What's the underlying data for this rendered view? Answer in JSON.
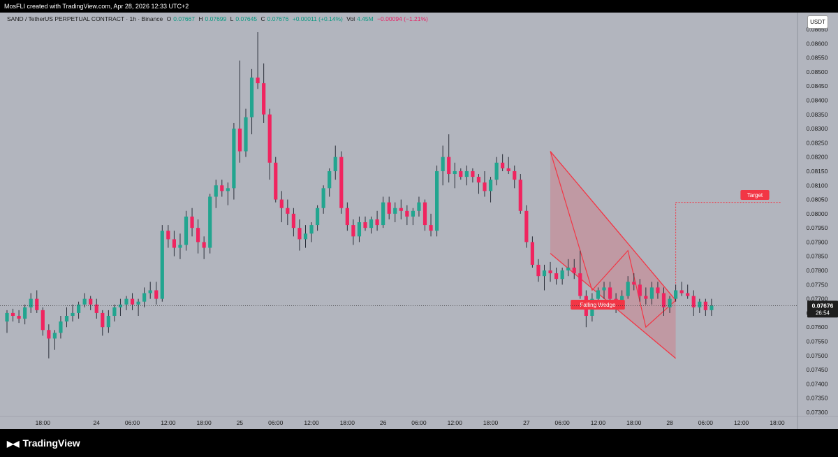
{
  "header": {
    "caption": "MosFLI created with TradingView.com, Apr 28, 2026 12:33 UTC+2"
  },
  "legend": {
    "symbol": "SAND / TetherUS PERPETUAL CONTRACT · 1h · Binance",
    "o_label": "O",
    "o_value": "0.07667",
    "h_label": "H",
    "h_value": "0.07699",
    "l_label": "L",
    "l_value": "0.07645",
    "c_label": "C",
    "c_value": "0.07676",
    "change": "+0.00011 (+0.14%)",
    "vol_label": "Vol",
    "vol_value": "4.45M",
    "vol_change": "−0.00094 (−1.21%)"
  },
  "currency_button": "USDT",
  "colors": {
    "up": "#22a58f",
    "down": "#f0245f",
    "pattern": "#f23645",
    "background": "#b2b5be"
  },
  "footer": {
    "brand": "TradingView",
    "logo_icon": "tradingview-logo-icon"
  },
  "chart_data": {
    "type": "candlestick",
    "interval": "1h",
    "y_axis": {
      "min": 0.073,
      "max": 0.0865,
      "ticks": [
        "0.08650",
        "0.08600",
        "0.08550",
        "0.08500",
        "0.08450",
        "0.08400",
        "0.08350",
        "0.08300",
        "0.08250",
        "0.08200",
        "0.08150",
        "0.08100",
        "0.08050",
        "0.08000",
        "0.07950",
        "0.07900",
        "0.07850",
        "0.07800",
        "0.07750",
        "0.07700",
        "0.07650",
        "0.07600",
        "0.07550",
        "0.07500",
        "0.07450",
        "0.07400",
        "0.07350",
        "0.07300"
      ]
    },
    "x_axis": {
      "ticks": [
        {
          "label": "18:00",
          "index": 6
        },
        {
          "label": "24",
          "index": 15
        },
        {
          "label": "06:00",
          "index": 21
        },
        {
          "label": "12:00",
          "index": 27
        },
        {
          "label": "18:00",
          "index": 33
        },
        {
          "label": "25",
          "index": 39
        },
        {
          "label": "06:00",
          "index": 45
        },
        {
          "label": "12:00",
          "index": 51
        },
        {
          "label": "18:00",
          "index": 57
        },
        {
          "label": "26",
          "index": 63
        },
        {
          "label": "06:00",
          "index": 69
        },
        {
          "label": "12:00",
          "index": 75
        },
        {
          "label": "18:00",
          "index": 81
        },
        {
          "label": "27",
          "index": 87
        },
        {
          "label": "06:00",
          "index": 93
        },
        {
          "label": "12:00",
          "index": 99
        },
        {
          "label": "18:00",
          "index": 105
        },
        {
          "label": "28",
          "index": 111
        },
        {
          "label": "06:00",
          "index": 117
        },
        {
          "label": "12:00",
          "index": 123
        },
        {
          "label": "18:00",
          "index": 129
        }
      ]
    },
    "last_price": {
      "value": "0.07676",
      "countdown": "26:54"
    },
    "ohlc": [
      [
        0.0762,
        0.0766,
        0.0758,
        0.0765
      ],
      [
        0.0765,
        0.07665,
        0.0762,
        0.0764
      ],
      [
        0.0764,
        0.0766,
        0.07615,
        0.0763
      ],
      [
        0.0763,
        0.0768,
        0.0761,
        0.0767
      ],
      [
        0.0767,
        0.0772,
        0.0765,
        0.077
      ],
      [
        0.077,
        0.0773,
        0.0765,
        0.0766
      ],
      [
        0.0766,
        0.0767,
        0.0757,
        0.0759
      ],
      [
        0.0759,
        0.0761,
        0.0749,
        0.0756
      ],
      [
        0.0756,
        0.0759,
        0.0752,
        0.0758
      ],
      [
        0.0758,
        0.0764,
        0.0756,
        0.0762
      ],
      [
        0.0762,
        0.0767,
        0.076,
        0.0764
      ],
      [
        0.0764,
        0.0768,
        0.0762,
        0.0765
      ],
      [
        0.0765,
        0.0769,
        0.0763,
        0.0768
      ],
      [
        0.0768,
        0.0772,
        0.0767,
        0.077
      ],
      [
        0.077,
        0.0771,
        0.0766,
        0.0768
      ],
      [
        0.0768,
        0.077,
        0.0763,
        0.0765
      ],
      [
        0.0765,
        0.0766,
        0.0757,
        0.076
      ],
      [
        0.076,
        0.0766,
        0.0758,
        0.0764
      ],
      [
        0.0764,
        0.0768,
        0.0762,
        0.0767
      ],
      [
        0.0767,
        0.077,
        0.0764,
        0.0768
      ],
      [
        0.0768,
        0.0771,
        0.0766,
        0.077
      ],
      [
        0.077,
        0.0772,
        0.0766,
        0.0768
      ],
      [
        0.0768,
        0.077,
        0.0764,
        0.0769
      ],
      [
        0.0769,
        0.0774,
        0.0767,
        0.0772
      ],
      [
        0.0772,
        0.0776,
        0.077,
        0.0773
      ],
      [
        0.0773,
        0.0776,
        0.0768,
        0.077
      ],
      [
        0.077,
        0.0796,
        0.0769,
        0.0794
      ],
      [
        0.0794,
        0.0796,
        0.0788,
        0.0791
      ],
      [
        0.0791,
        0.0794,
        0.0785,
        0.0788
      ],
      [
        0.0788,
        0.0793,
        0.0784,
        0.0789
      ],
      [
        0.0789,
        0.0801,
        0.0787,
        0.0799
      ],
      [
        0.0799,
        0.0802,
        0.0792,
        0.0795
      ],
      [
        0.0795,
        0.0798,
        0.0786,
        0.079
      ],
      [
        0.079,
        0.0792,
        0.0784,
        0.0788
      ],
      [
        0.0788,
        0.0807,
        0.0786,
        0.0806
      ],
      [
        0.0806,
        0.0812,
        0.0802,
        0.081
      ],
      [
        0.081,
        0.0812,
        0.0806,
        0.0808
      ],
      [
        0.0808,
        0.0811,
        0.0803,
        0.0809
      ],
      [
        0.0809,
        0.0832,
        0.0805,
        0.083
      ],
      [
        0.083,
        0.0854,
        0.0818,
        0.0822
      ],
      [
        0.0822,
        0.0837,
        0.082,
        0.0834
      ],
      [
        0.0834,
        0.0851,
        0.0828,
        0.0848
      ],
      [
        0.0848,
        0.0864,
        0.0844,
        0.0846
      ],
      [
        0.0846,
        0.0853,
        0.0832,
        0.0835
      ],
      [
        0.0835,
        0.0837,
        0.0812,
        0.0818
      ],
      [
        0.0818,
        0.082,
        0.0804,
        0.0805
      ],
      [
        0.0805,
        0.0808,
        0.0797,
        0.0802
      ],
      [
        0.0802,
        0.0805,
        0.0796,
        0.08
      ],
      [
        0.08,
        0.0802,
        0.0792,
        0.0795
      ],
      [
        0.0795,
        0.0798,
        0.0787,
        0.0791
      ],
      [
        0.0791,
        0.0796,
        0.0788,
        0.0793
      ],
      [
        0.0793,
        0.0797,
        0.079,
        0.0796
      ],
      [
        0.0796,
        0.0803,
        0.0794,
        0.0802
      ],
      [
        0.0802,
        0.081,
        0.08,
        0.0809
      ],
      [
        0.0809,
        0.0816,
        0.0806,
        0.0815
      ],
      [
        0.0815,
        0.0824,
        0.0812,
        0.082
      ],
      [
        0.082,
        0.0822,
        0.08,
        0.0802
      ],
      [
        0.0802,
        0.0804,
        0.0794,
        0.0796
      ],
      [
        0.0796,
        0.0798,
        0.0789,
        0.0792
      ],
      [
        0.0792,
        0.0799,
        0.079,
        0.0797
      ],
      [
        0.0797,
        0.0799,
        0.0794,
        0.0795
      ],
      [
        0.0795,
        0.0799,
        0.0793,
        0.0798
      ],
      [
        0.0798,
        0.0801,
        0.0794,
        0.0796
      ],
      [
        0.0796,
        0.0806,
        0.0795,
        0.0804
      ],
      [
        0.0804,
        0.0806,
        0.0798,
        0.08
      ],
      [
        0.08,
        0.0804,
        0.0797,
        0.0802
      ],
      [
        0.0802,
        0.0805,
        0.0798,
        0.0801
      ],
      [
        0.0801,
        0.0803,
        0.0796,
        0.0799
      ],
      [
        0.0799,
        0.0802,
        0.0796,
        0.0801
      ],
      [
        0.0801,
        0.0806,
        0.0799,
        0.0804
      ],
      [
        0.0804,
        0.0805,
        0.0794,
        0.0796
      ],
      [
        0.0796,
        0.08,
        0.0792,
        0.0794
      ],
      [
        0.0794,
        0.0817,
        0.0792,
        0.0815
      ],
      [
        0.0815,
        0.0824,
        0.081,
        0.082
      ],
      [
        0.082,
        0.0828,
        0.0811,
        0.0814
      ],
      [
        0.0814,
        0.0818,
        0.0809,
        0.0815
      ],
      [
        0.0815,
        0.0816,
        0.0812,
        0.0813
      ],
      [
        0.0813,
        0.0817,
        0.081,
        0.0815
      ],
      [
        0.0815,
        0.0816,
        0.0811,
        0.0813
      ],
      [
        0.0813,
        0.0814,
        0.0807,
        0.0811
      ],
      [
        0.0811,
        0.0815,
        0.0806,
        0.0808
      ],
      [
        0.0808,
        0.0813,
        0.0804,
        0.0812
      ],
      [
        0.0812,
        0.082,
        0.081,
        0.0818
      ],
      [
        0.0818,
        0.0821,
        0.0815,
        0.0816
      ],
      [
        0.0816,
        0.082,
        0.0814,
        0.0815
      ],
      [
        0.0815,
        0.0817,
        0.0809,
        0.0812
      ],
      [
        0.0812,
        0.0814,
        0.08,
        0.0801
      ],
      [
        0.0801,
        0.0803,
        0.0788,
        0.079
      ],
      [
        0.079,
        0.0792,
        0.0781,
        0.0782
      ],
      [
        0.0782,
        0.0784,
        0.0776,
        0.0778
      ],
      [
        0.0778,
        0.0782,
        0.0773,
        0.078
      ],
      [
        0.078,
        0.0783,
        0.0776,
        0.0779
      ],
      [
        0.0779,
        0.0781,
        0.0775,
        0.0777
      ],
      [
        0.0777,
        0.0781,
        0.0775,
        0.078
      ],
      [
        0.078,
        0.0784,
        0.0778,
        0.0781
      ],
      [
        0.0781,
        0.0784,
        0.0777,
        0.0779
      ],
      [
        0.0779,
        0.0787,
        0.077,
        0.0771
      ],
      [
        0.0771,
        0.0773,
        0.076,
        0.0764
      ],
      [
        0.0764,
        0.0772,
        0.0762,
        0.077
      ],
      [
        0.077,
        0.0774,
        0.0768,
        0.0773
      ],
      [
        0.0773,
        0.0776,
        0.077,
        0.0774
      ],
      [
        0.0774,
        0.0776,
        0.0769,
        0.077
      ],
      [
        0.077,
        0.0772,
        0.0765,
        0.0769
      ],
      [
        0.0769,
        0.0773,
        0.0767,
        0.0771
      ],
      [
        0.0771,
        0.0778,
        0.077,
        0.0776
      ],
      [
        0.0776,
        0.0779,
        0.0773,
        0.0775
      ],
      [
        0.0775,
        0.0777,
        0.0769,
        0.0771
      ],
      [
        0.0771,
        0.0774,
        0.0768,
        0.077
      ],
      [
        0.077,
        0.0776,
        0.0768,
        0.0774
      ],
      [
        0.0774,
        0.0776,
        0.077,
        0.0772
      ],
      [
        0.0772,
        0.0774,
        0.0764,
        0.0767
      ],
      [
        0.0767,
        0.0771,
        0.0765,
        0.077
      ],
      [
        0.077,
        0.0775,
        0.0769,
        0.0773
      ],
      [
        0.0773,
        0.0776,
        0.0771,
        0.0772
      ],
      [
        0.0772,
        0.0775,
        0.077,
        0.0771
      ],
      [
        0.0771,
        0.0773,
        0.0764,
        0.0767
      ],
      [
        0.0767,
        0.077,
        0.0765,
        0.0769
      ],
      [
        0.0769,
        0.077,
        0.0764,
        0.0766
      ],
      [
        0.0766,
        0.077,
        0.0764,
        0.07676
      ]
    ],
    "annotations": {
      "pattern_label": "Falling Wedge",
      "target_label": "Target"
    }
  }
}
